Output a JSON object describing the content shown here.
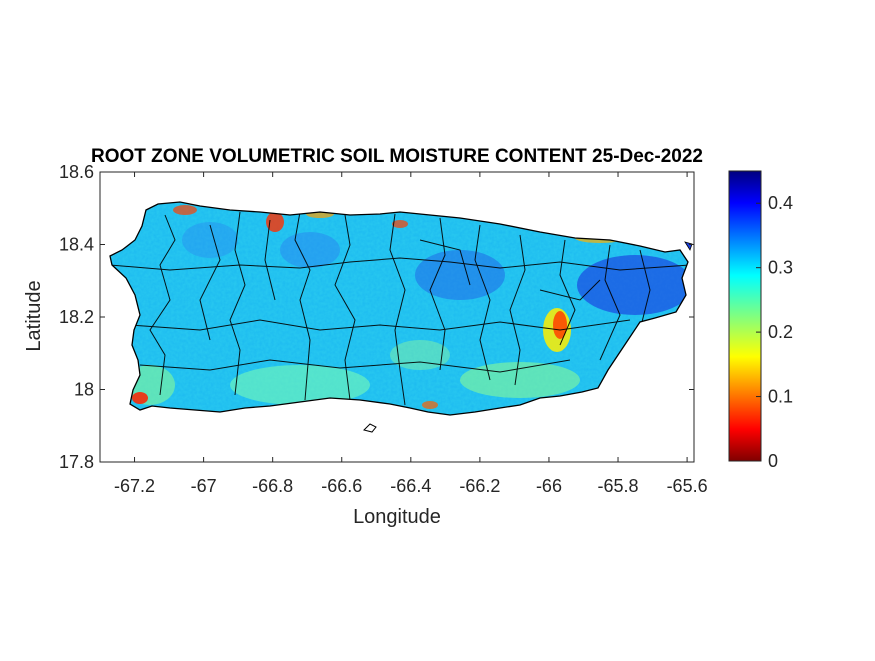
{
  "figure": {
    "title": "ROOT ZONE VOLUMETRIC SOIL MOISTURE CONTENT 25-Dec-2022",
    "xlabel": "Longitude",
    "ylabel": "Latitude"
  },
  "map": {
    "region": "Puerto Rico",
    "xlim": [
      -67.3,
      -65.58
    ],
    "ylim": [
      17.8,
      18.6
    ],
    "x_ticks": [
      -67.2,
      -67,
      -66.8,
      -66.6,
      -66.4,
      -66.2,
      -66,
      -65.8,
      -65.6
    ],
    "y_ticks": [
      17.8,
      18,
      18.2,
      18.4,
      18.6
    ],
    "x_tick_labels": [
      "-67.2",
      "-67",
      "-66.8",
      "-66.6",
      "-66.4",
      "-66.2",
      "-66",
      "-65.8",
      "-65.6"
    ],
    "y_tick_labels": [
      "17.8",
      "18",
      "18.2",
      "18.4",
      "18.6"
    ],
    "dominant_value": 0.3,
    "colors": {
      "border": "#000000",
      "axes": "#262626"
    }
  },
  "colorbar": {
    "range": [
      0,
      0.45
    ],
    "ticks": [
      0,
      0.1,
      0.2,
      0.3,
      0.4
    ],
    "tick_labels": [
      "0",
      "0.1",
      "0.2",
      "0.3",
      "0.4"
    ],
    "colormap": "jet"
  }
}
